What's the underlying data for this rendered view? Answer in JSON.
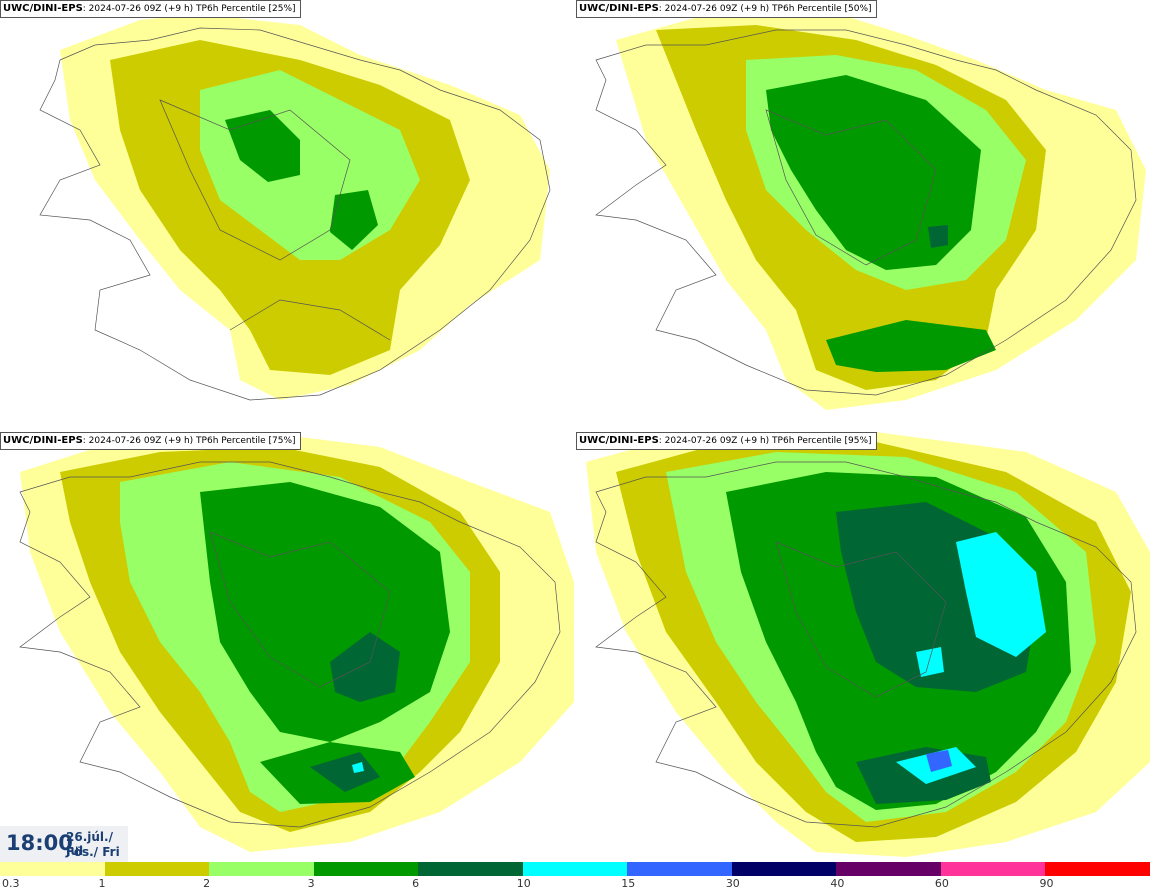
{
  "panels": [
    {
      "source": "UWC/DINI-EPS",
      "run": "2024-07-26 09Z (+9 h)",
      "field": "TP6h Percentile",
      "percentile": "[25%]"
    },
    {
      "source": "UWC/DINI-EPS",
      "run": "2024-07-26 09Z (+9 h)",
      "field": "TP6h Percentile",
      "percentile": "[50%]"
    },
    {
      "source": "UWC/DINI-EPS",
      "run": "2024-07-26 09Z (+9 h)",
      "field": "TP6h Percentile",
      "percentile": "[75%]"
    },
    {
      "source": "UWC/DINI-EPS",
      "run": "2024-07-26 09Z (+9 h)",
      "field": "TP6h Percentile",
      "percentile": "[95%]"
    }
  ],
  "valid_time": {
    "time": "18:00",
    "date": "26.júl./ Jul",
    "day": "Fös./ Fri"
  },
  "legend": {
    "labels": [
      "0.3",
      "1",
      "2",
      "3",
      "6",
      "10",
      "15",
      "30",
      "40",
      "60",
      "90"
    ],
    "colors": [
      "#ffff99",
      "#cccc00",
      "#99ff66",
      "#009900",
      "#006633",
      "#00ffff",
      "#3366ff",
      "#000066",
      "#660066",
      "#ff3399",
      "#ff0000"
    ]
  }
}
